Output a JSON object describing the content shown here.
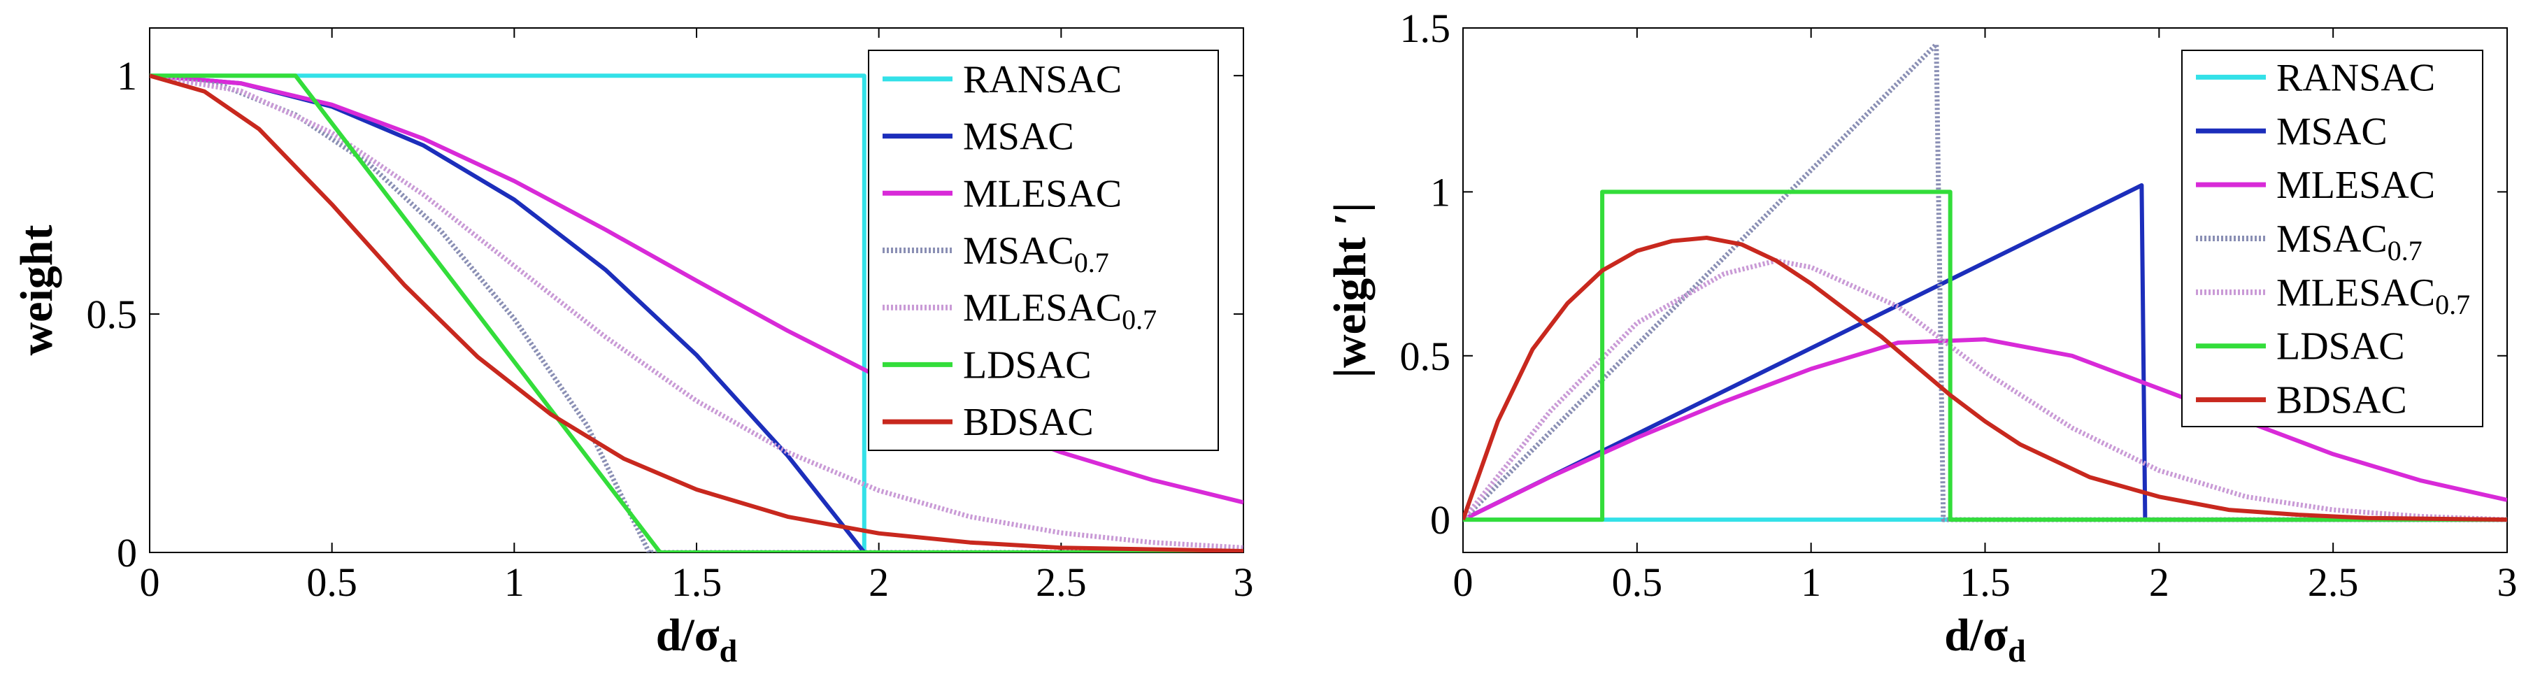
{
  "chart_data": [
    {
      "type": "line",
      "title": "",
      "xlabel": "d/σ",
      "xlabel_sub": "d",
      "ylabel": "weight",
      "xlim": [
        0,
        3
      ],
      "ylim": [
        0,
        1.1
      ],
      "xticks": [
        "0",
        "0.5",
        "1",
        "1.5",
        "2",
        "2.5",
        "3"
      ],
      "xtick_values": [
        0,
        0.5,
        1,
        1.5,
        2,
        2.5,
        3
      ],
      "yticks": [
        "0",
        "0.5",
        "1"
      ],
      "ytick_values": [
        0,
        0.5,
        1
      ],
      "legend_position": "top-right",
      "series": [
        {
          "name": "RANSAC",
          "color": "#33e1e8",
          "dashed": false,
          "x": [
            0,
            1.96,
            1.96,
            3
          ],
          "y": [
            1,
            1,
            0,
            0
          ]
        },
        {
          "name": "MSAC",
          "color": "#1c2ebb",
          "dashed": false,
          "x": [
            0,
            0.25,
            0.5,
            0.75,
            1,
            1.25,
            1.5,
            1.75,
            1.96,
            2,
            3
          ],
          "y": [
            1,
            0.984,
            0.935,
            0.854,
            0.74,
            0.593,
            0.414,
            0.203,
            0,
            0,
            0
          ]
        },
        {
          "name": "MLESAC",
          "color": "#d82ad8",
          "dashed": false,
          "x": [
            0,
            0.25,
            0.5,
            0.75,
            1,
            1.25,
            1.5,
            1.75,
            2,
            2.25,
            2.5,
            2.75,
            3
          ],
          "y": [
            1,
            0.984,
            0.939,
            0.868,
            0.779,
            0.677,
            0.57,
            0.465,
            0.368,
            0.282,
            0.21,
            0.152,
            0.105
          ]
        },
        {
          "name": "MSAC",
          "sub": "0.7",
          "color": "#8a8fb4",
          "dashed": true,
          "x": [
            0,
            0.2,
            0.4,
            0.6,
            0.8,
            1,
            1.2,
            1.37,
            1.5,
            3
          ],
          "y": [
            1,
            0.979,
            0.918,
            0.816,
            0.673,
            0.49,
            0.266,
            0,
            0,
            0
          ]
        },
        {
          "name": "MLESAC",
          "sub": "0.7",
          "color": "#c99ad6",
          "dashed": true,
          "x": [
            0,
            0.25,
            0.5,
            0.75,
            1,
            1.25,
            1.5,
            1.75,
            2,
            2.25,
            2.5,
            2.75,
            3
          ],
          "y": [
            1,
            0.968,
            0.88,
            0.751,
            0.601,
            0.452,
            0.318,
            0.21,
            0.13,
            0.075,
            0.041,
            0.021,
            0.01
          ]
        },
        {
          "name": "LDSAC",
          "color": "#33dd3a",
          "dashed": false,
          "x": [
            0,
            0.4,
            1.4,
            3
          ],
          "y": [
            1,
            1,
            0,
            0
          ]
        },
        {
          "name": "BDSAC",
          "color": "#c8281e",
          "dashed": false,
          "x": [
            0,
            0.15,
            0.3,
            0.5,
            0.7,
            0.9,
            1.1,
            1.3,
            1.5,
            1.75,
            2,
            2.25,
            2.5,
            3
          ],
          "y": [
            1,
            0.967,
            0.888,
            0.73,
            0.56,
            0.41,
            0.29,
            0.197,
            0.132,
            0.075,
            0.04,
            0.021,
            0.01,
            0.003
          ]
        }
      ]
    },
    {
      "type": "line",
      "title": "",
      "xlabel": "d/σ",
      "xlabel_sub": "d",
      "ylabel": "|weight ′|",
      "xlim": [
        0,
        3
      ],
      "ylim": [
        -0.1,
        1.5
      ],
      "xticks": [
        "0",
        "0.5",
        "1",
        "1.5",
        "2",
        "2.5",
        "3"
      ],
      "xtick_values": [
        0,
        0.5,
        1,
        1.5,
        2,
        2.5,
        3
      ],
      "yticks": [
        "0",
        "0.5",
        "1",
        "1.5"
      ],
      "ytick_values": [
        0,
        0.5,
        1,
        1.5
      ],
      "legend_position": "top-right",
      "series": [
        {
          "name": "RANSAC",
          "color": "#33e1e8",
          "dashed": false,
          "x": [
            0,
            3
          ],
          "y": [
            0,
            0
          ]
        },
        {
          "name": "MSAC",
          "color": "#1c2ebb",
          "dashed": false,
          "x": [
            0,
            1.95,
            1.96,
            3
          ],
          "y": [
            0,
            1.02,
            0,
            0
          ]
        },
        {
          "name": "MLESAC",
          "color": "#d82ad8",
          "dashed": false,
          "x": [
            0,
            0.25,
            0.5,
            0.75,
            1,
            1.25,
            1.5,
            1.75,
            2,
            2.25,
            2.5,
            2.75,
            3
          ],
          "y": [
            0,
            0.13,
            0.25,
            0.36,
            0.46,
            0.54,
            0.55,
            0.5,
            0.4,
            0.3,
            0.2,
            0.12,
            0.06
          ]
        },
        {
          "name": "MSAC",
          "sub": "0.7",
          "color": "#8a8fb4",
          "dashed": true,
          "x": [
            0,
            1.36,
            1.38,
            3
          ],
          "y": [
            0,
            1.45,
            0,
            0
          ]
        },
        {
          "name": "MLESAC",
          "sub": "0.7",
          "color": "#c99ad6",
          "dashed": true,
          "x": [
            0,
            0.25,
            0.5,
            0.75,
            0.9,
            1,
            1.25,
            1.5,
            1.75,
            2,
            2.25,
            2.5,
            2.75,
            3
          ],
          "y": [
            0,
            0.33,
            0.6,
            0.75,
            0.79,
            0.77,
            0.65,
            0.45,
            0.28,
            0.15,
            0.07,
            0.03,
            0.01,
            0
          ]
        },
        {
          "name": "LDSAC",
          "color": "#33dd3a",
          "dashed": false,
          "x": [
            0,
            0.4,
            0.4,
            1.4,
            1.4,
            3
          ],
          "y": [
            0,
            0,
            1,
            1,
            0,
            0
          ]
        },
        {
          "name": "BDSAC",
          "color": "#c8281e",
          "dashed": false,
          "x": [
            0,
            0.1,
            0.2,
            0.3,
            0.4,
            0.5,
            0.6,
            0.7,
            0.8,
            0.9,
            1,
            1.1,
            1.2,
            1.3,
            1.4,
            1.5,
            1.6,
            1.8,
            2,
            2.2,
            2.4,
            2.6,
            3
          ],
          "y": [
            0,
            0.3,
            0.52,
            0.66,
            0.76,
            0.82,
            0.85,
            0.86,
            0.84,
            0.79,
            0.72,
            0.64,
            0.56,
            0.47,
            0.38,
            0.3,
            0.23,
            0.13,
            0.07,
            0.03,
            0.015,
            0.005,
            0
          ]
        }
      ]
    }
  ]
}
